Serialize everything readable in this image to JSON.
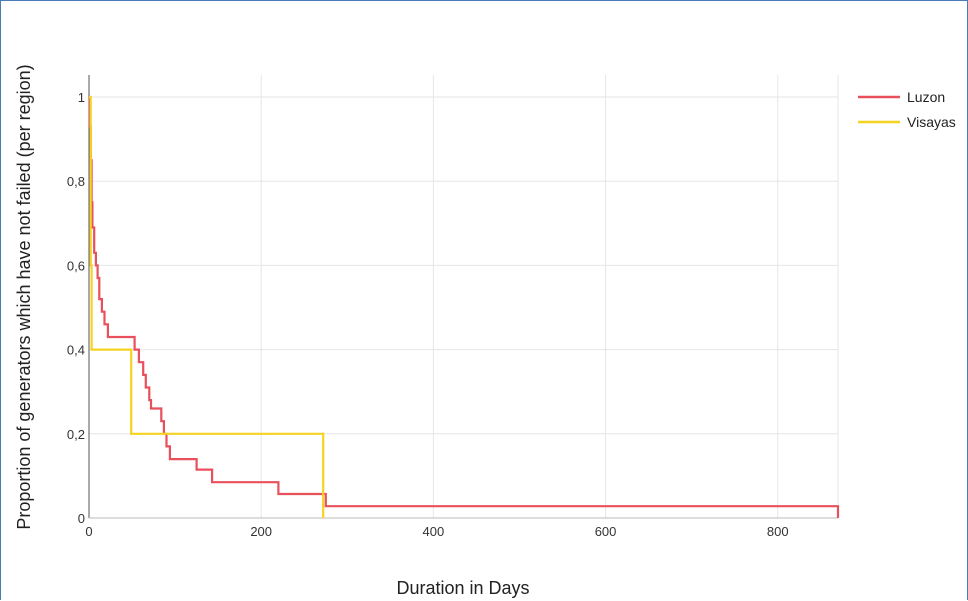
{
  "chart_data": {
    "type": "line",
    "title": "",
    "xlabel": "Duration in Days",
    "ylabel": "Proportion of generators which have not failed (per region)",
    "xlim": [
      0,
      870
    ],
    "ylim": [
      0,
      1
    ],
    "x_ticks": [
      0,
      200,
      400,
      600,
      800
    ],
    "y_ticks": [
      0,
      0.2,
      0.4,
      0.6,
      0.8,
      1
    ],
    "x_tick_labels": [
      "0",
      "200",
      "400",
      "600",
      "800"
    ],
    "y_tick_labels": [
      "0",
      "0,2",
      "0,4",
      "0,6",
      "0,8",
      "1"
    ],
    "grid": true,
    "legend_position": "top-right",
    "step": true,
    "series": [
      {
        "name": "Luzon",
        "color": "#e8505b",
        "points": [
          [
            0,
            1
          ],
          [
            1,
            0.93
          ],
          [
            2,
            0.85
          ],
          [
            3,
            0.75
          ],
          [
            4,
            0.69
          ],
          [
            6,
            0.63
          ],
          [
            8,
            0.6
          ],
          [
            10,
            0.57
          ],
          [
            12,
            0.52
          ],
          [
            15,
            0.49
          ],
          [
            18,
            0.46
          ],
          [
            22,
            0.43
          ],
          [
            50,
            0.43
          ],
          [
            53,
            0.4
          ],
          [
            58,
            0.37
          ],
          [
            63,
            0.34
          ],
          [
            66,
            0.31
          ],
          [
            70,
            0.28
          ],
          [
            72,
            0.26
          ],
          [
            80,
            0.26
          ],
          [
            84,
            0.23
          ],
          [
            87,
            0.2
          ],
          [
            90,
            0.17
          ],
          [
            94,
            0.14
          ],
          [
            122,
            0.14
          ],
          [
            125,
            0.115
          ],
          [
            140,
            0.115
          ],
          [
            143,
            0.085
          ],
          [
            218,
            0.085
          ],
          [
            220,
            0.057
          ],
          [
            272,
            0.057
          ],
          [
            275,
            0.028
          ],
          [
            870,
            0.028
          ],
          [
            870,
            0
          ]
        ]
      },
      {
        "name": "Visayas",
        "color": "#f5d320",
        "points": [
          [
            0,
            1
          ],
          [
            2,
            0.6
          ],
          [
            3,
            0.4
          ],
          [
            48,
            0.4
          ],
          [
            49,
            0.2
          ],
          [
            271,
            0.2
          ],
          [
            272,
            0
          ]
        ]
      }
    ]
  }
}
